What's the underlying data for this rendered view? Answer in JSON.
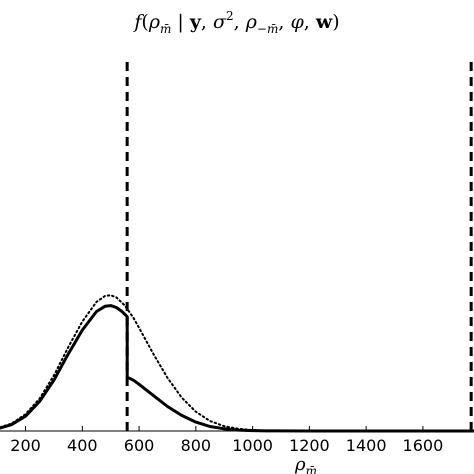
{
  "chart_data": {
    "type": "line",
    "title": "f(ρ_m̄ | y, σ², ρ_−m̄, φ, w)",
    "xlabel": "ρ_m̄",
    "ylabel": "",
    "xlim": [
      110,
      1780
    ],
    "ylim": [
      0,
      1.0
    ],
    "x_ticks": [
      200,
      400,
      600,
      800,
      1000,
      1200,
      1400,
      1600
    ],
    "grid": false,
    "series": [
      {
        "style": "dotted",
        "x": [
          110,
          150,
          200,
          250,
          300,
          350,
          400,
          450,
          480,
          500,
          520,
          550,
          580,
          600,
          650,
          700,
          750,
          800,
          850,
          900,
          950,
          1000,
          1050,
          1100
        ],
        "y": [
          0.01,
          0.02,
          0.045,
          0.088,
          0.15,
          0.225,
          0.295,
          0.348,
          0.364,
          0.366,
          0.36,
          0.338,
          0.305,
          0.278,
          0.208,
          0.143,
          0.09,
          0.052,
          0.027,
          0.013,
          0.006,
          0.0025,
          0.001,
          0.0
        ]
      },
      {
        "style": "solid",
        "x": [
          110,
          150,
          200,
          250,
          300,
          350,
          400,
          450,
          480,
          500,
          520,
          540,
          558,
          558,
          580,
          600,
          650,
          700,
          750,
          800,
          850,
          900,
          950,
          1000,
          1050,
          1100,
          1200,
          1400,
          1600,
          1780
        ],
        "y": [
          0.008,
          0.017,
          0.04,
          0.08,
          0.137,
          0.207,
          0.272,
          0.322,
          0.336,
          0.338,
          0.333,
          0.322,
          0.308,
          0.145,
          0.137,
          0.126,
          0.096,
          0.066,
          0.042,
          0.024,
          0.012,
          0.006,
          0.0025,
          0.001,
          0.0004,
          0.0002,
          0.0,
          0.0,
          0.0,
          0.0
        ]
      }
    ],
    "vlines": [
      {
        "x": 558,
        "style": "dashed"
      },
      {
        "x": 1770,
        "style": "dashed"
      }
    ]
  }
}
